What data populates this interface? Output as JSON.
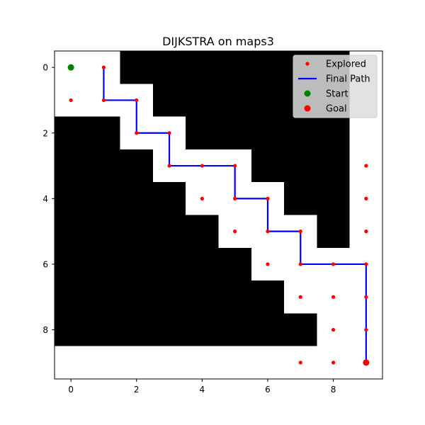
{
  "chart_data": {
    "type": "scatter",
    "title": "DIJKSTRA on maps3",
    "xlabel": "",
    "ylabel": "",
    "xlim": [
      -0.5,
      9.5
    ],
    "ylim": [
      9.5,
      -0.5
    ],
    "x_ticks": [
      0,
      2,
      4,
      6,
      8
    ],
    "y_ticks": [
      0,
      2,
      4,
      6,
      8
    ],
    "grid": false,
    "legend_position": "top-right",
    "grid_map": {
      "rows": 10,
      "cols": 10,
      "colors": {
        "free": "#ffffff",
        "obstacle": "#000000"
      },
      "cells": [
        [
          0,
          0,
          1,
          1,
          1,
          1,
          1,
          1,
          1,
          0
        ],
        [
          0,
          0,
          0,
          1,
          1,
          1,
          1,
          1,
          1,
          0
        ],
        [
          1,
          1,
          0,
          0,
          1,
          1,
          1,
          1,
          1,
          0
        ],
        [
          1,
          1,
          1,
          0,
          0,
          0,
          1,
          1,
          1,
          0
        ],
        [
          1,
          1,
          1,
          1,
          0,
          0,
          0,
          1,
          1,
          0
        ],
        [
          1,
          1,
          1,
          1,
          1,
          0,
          0,
          0,
          1,
          0
        ],
        [
          1,
          1,
          1,
          1,
          1,
          1,
          0,
          0,
          0,
          0
        ],
        [
          1,
          1,
          1,
          1,
          1,
          1,
          1,
          0,
          0,
          0
        ],
        [
          1,
          1,
          1,
          1,
          1,
          1,
          1,
          1,
          0,
          0
        ],
        [
          0,
          0,
          0,
          0,
          0,
          0,
          0,
          0,
          0,
          0
        ]
      ]
    },
    "series": [
      {
        "name": "Explored",
        "kind": "scatter",
        "color": "#ff0000",
        "points": [
          [
            0,
            0
          ],
          [
            1,
            0
          ],
          [
            0,
            1
          ],
          [
            1,
            1
          ],
          [
            2,
            1
          ],
          [
            2,
            2
          ],
          [
            3,
            2
          ],
          [
            3,
            3
          ],
          [
            4,
            3
          ],
          [
            5,
            3
          ],
          [
            9,
            3
          ],
          [
            4,
            4
          ],
          [
            5,
            4
          ],
          [
            6,
            4
          ],
          [
            9,
            4
          ],
          [
            5,
            5
          ],
          [
            6,
            5
          ],
          [
            7,
            5
          ],
          [
            9,
            5
          ],
          [
            6,
            6
          ],
          [
            7,
            6
          ],
          [
            8,
            6
          ],
          [
            9,
            6
          ],
          [
            7,
            7
          ],
          [
            8,
            7
          ],
          [
            9,
            7
          ],
          [
            8,
            8
          ],
          [
            9,
            8
          ],
          [
            7,
            9
          ],
          [
            8,
            9
          ],
          [
            9,
            9
          ]
        ]
      },
      {
        "name": "Final Path",
        "kind": "line",
        "color": "#0000ff",
        "points": [
          [
            1,
            0
          ],
          [
            1,
            1
          ],
          [
            2,
            1
          ],
          [
            2,
            2
          ],
          [
            3,
            2
          ],
          [
            3,
            3
          ],
          [
            4,
            3
          ],
          [
            5,
            3
          ],
          [
            5,
            4
          ],
          [
            6,
            4
          ],
          [
            6,
            5
          ],
          [
            7,
            5
          ],
          [
            7,
            6
          ],
          [
            8,
            6
          ],
          [
            9,
            6
          ],
          [
            9,
            7
          ],
          [
            9,
            8
          ],
          [
            9,
            9
          ]
        ]
      },
      {
        "name": "Start",
        "kind": "marker",
        "color": "#008000",
        "points": [
          [
            0,
            0
          ]
        ]
      },
      {
        "name": "Goal",
        "kind": "marker",
        "color": "#ff0000",
        "points": [
          [
            9,
            9
          ]
        ]
      }
    ]
  }
}
